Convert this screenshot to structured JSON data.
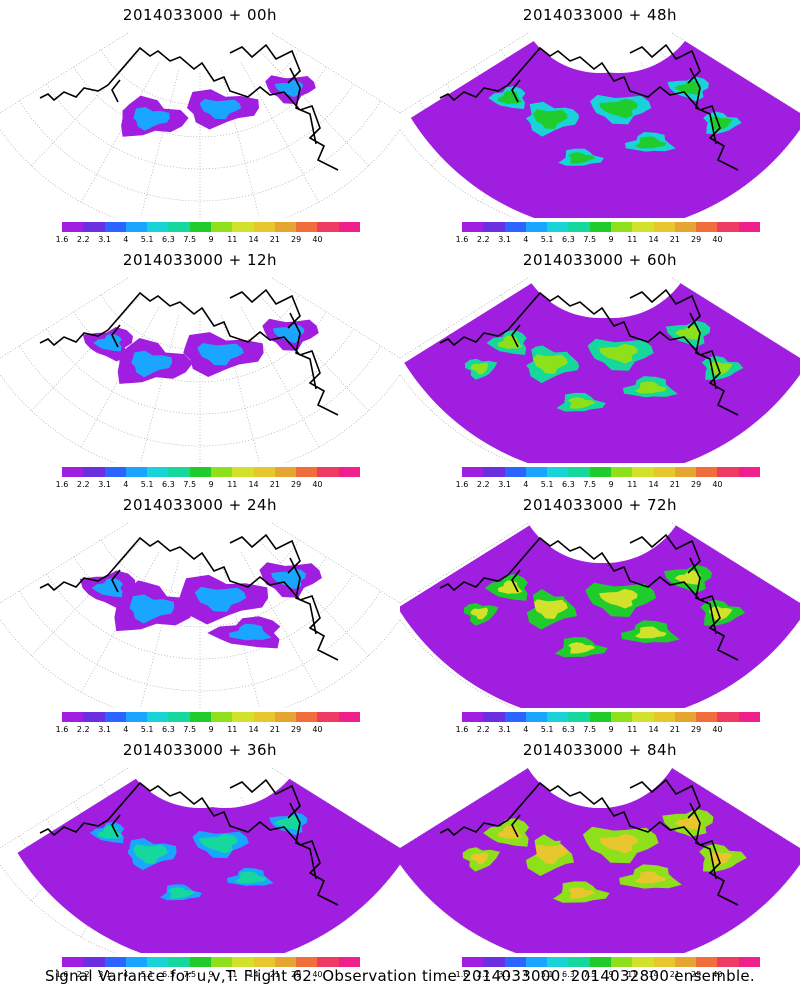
{
  "panels": [
    {
      "title": "2014033000 + 00h",
      "intensity": 0
    },
    {
      "title": "2014033000 + 48h",
      "intensity": 4
    },
    {
      "title": "2014033000 + 12h",
      "intensity": 1
    },
    {
      "title": "2014033000 + 60h",
      "intensity": 5
    },
    {
      "title": "2014033000 + 24h",
      "intensity": 2
    },
    {
      "title": "2014033000 + 72h",
      "intensity": 6
    },
    {
      "title": "2014033000 + 36h",
      "intensity": 3
    },
    {
      "title": "2014033000 + 84h",
      "intensity": 7
    }
  ],
  "colorbar": {
    "labels": [
      "1.6",
      "2.2",
      "3.1",
      "4",
      "5.1",
      "6.3",
      "7.5",
      "9",
      "11",
      "14",
      "21",
      "29",
      "40"
    ],
    "colors": [
      "#a01ee0",
      "#6a2fe0",
      "#2d63ff",
      "#1aa6ff",
      "#19d3d8",
      "#16d79c",
      "#1fcc2b",
      "#8ee11a",
      "#d2e12a",
      "#e8c62d",
      "#e6a531",
      "#ef6e3c",
      "#ef3a63",
      "#ef1f8c"
    ]
  },
  "caption": "Signal Variance for u,v,T. Flight 62. Observation time 2014033000. 2014032800 ensemble."
}
